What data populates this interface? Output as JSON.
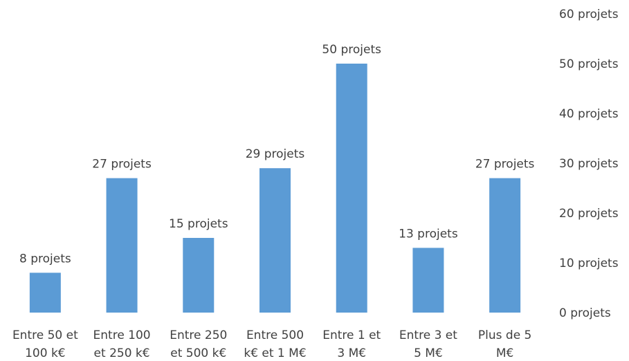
{
  "chart_data": {
    "type": "bar",
    "categories": [
      [
        "Entre 50 et",
        "100 k€"
      ],
      [
        "Entre 100",
        "et 250 k€"
      ],
      [
        "Entre 250",
        "et 500 k€"
      ],
      [
        "Entre 500",
        "k€ et 1 M€"
      ],
      [
        "Entre 1 et",
        "3 M€"
      ],
      [
        "Entre 3 et",
        "5 M€"
      ],
      [
        "Plus de 5",
        "M€"
      ]
    ],
    "values": [
      8,
      27,
      15,
      29,
      50,
      13,
      27
    ],
    "data_labels": [
      "8 projets",
      "27 projets",
      "15 projets",
      "29 projets",
      "50 projets",
      "13 projets",
      "27 projets"
    ],
    "y_ticks": [
      0,
      10,
      20,
      30,
      40,
      50,
      60
    ],
    "y_tick_labels": [
      "0 projets",
      "10 projets",
      "20 projets",
      "30 projets",
      "40 projets",
      "50 projets",
      "60 projets"
    ],
    "ylim": [
      0,
      60
    ],
    "y_axis_position": "right",
    "grid": false,
    "bar_color": "#5b9bd5"
  }
}
